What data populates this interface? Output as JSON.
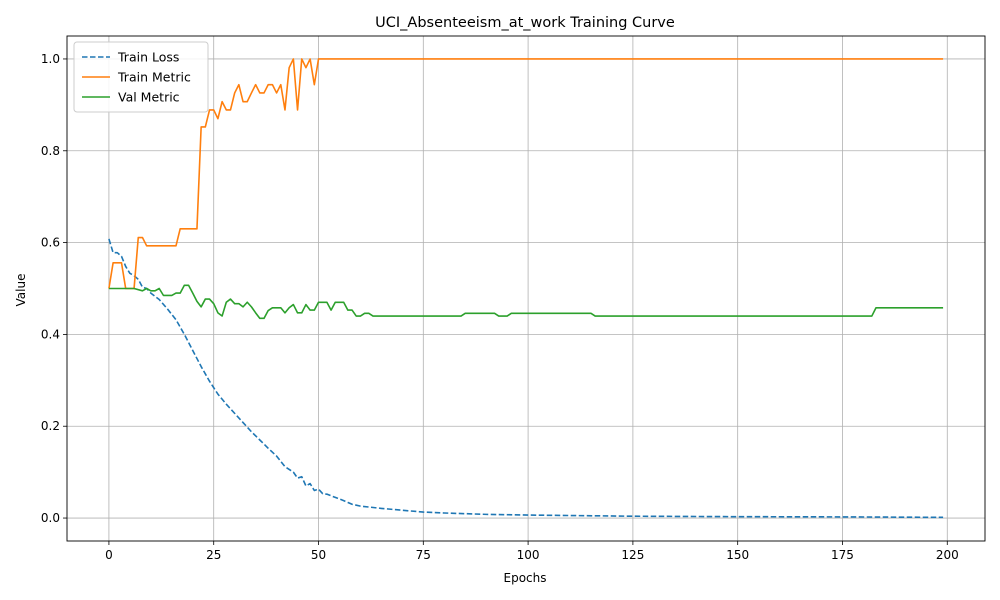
{
  "chart_data": {
    "type": "line",
    "title": "UCI_Absenteeism_at_work Training Curve",
    "xlabel": "Epochs",
    "ylabel": "Value",
    "xlim": [
      -10,
      209
    ],
    "ylim": [
      -0.05,
      1.05
    ],
    "xticks": [
      0,
      25,
      50,
      75,
      100,
      125,
      150,
      175,
      200
    ],
    "yticks": [
      0.0,
      0.2,
      0.4,
      0.6,
      0.8,
      1.0
    ],
    "grid": true,
    "legend_position": "upper-left",
    "series": [
      {
        "name": "Train Loss",
        "color": "#1f77b4",
        "style": "dashed",
        "points": [
          [
            0,
            0.608
          ],
          [
            1,
            0.578
          ],
          [
            2,
            0.578
          ],
          [
            3,
            0.57
          ],
          [
            4,
            0.548
          ],
          [
            5,
            0.533
          ],
          [
            6,
            0.528
          ],
          [
            7,
            0.52
          ],
          [
            8,
            0.503
          ],
          [
            9,
            0.5
          ],
          [
            10,
            0.49
          ],
          [
            12,
            0.476
          ],
          [
            14,
            0.455
          ],
          [
            16,
            0.432
          ],
          [
            18,
            0.4
          ],
          [
            20,
            0.365
          ],
          [
            22,
            0.33
          ],
          [
            24,
            0.298
          ],
          [
            26,
            0.27
          ],
          [
            28,
            0.248
          ],
          [
            30,
            0.228
          ],
          [
            32,
            0.208
          ],
          [
            34,
            0.188
          ],
          [
            36,
            0.17
          ],
          [
            38,
            0.152
          ],
          [
            40,
            0.135
          ],
          [
            42,
            0.112
          ],
          [
            44,
            0.1
          ],
          [
            45,
            0.087
          ],
          [
            46,
            0.09
          ],
          [
            47,
            0.07
          ],
          [
            48,
            0.075
          ],
          [
            49,
            0.06
          ],
          [
            50,
            0.063
          ],
          [
            51,
            0.053
          ],
          [
            52,
            0.052
          ],
          [
            54,
            0.045
          ],
          [
            56,
            0.038
          ],
          [
            58,
            0.03
          ],
          [
            60,
            0.026
          ],
          [
            65,
            0.021
          ],
          [
            70,
            0.017
          ],
          [
            75,
            0.013
          ],
          [
            80,
            0.011
          ],
          [
            90,
            0.008
          ],
          [
            100,
            0.0065
          ],
          [
            125,
            0.004
          ],
          [
            150,
            0.003
          ],
          [
            175,
            0.0025
          ],
          [
            199,
            0.0015
          ]
        ]
      },
      {
        "name": "Train Metric",
        "color": "#ff7f0e",
        "style": "solid",
        "points": [
          [
            0,
            0.5
          ],
          [
            1,
            0.556
          ],
          [
            2,
            0.556
          ],
          [
            3,
            0.556
          ],
          [
            4,
            0.5
          ],
          [
            5,
            0.5
          ],
          [
            6,
            0.5
          ],
          [
            7,
            0.611
          ],
          [
            8,
            0.611
          ],
          [
            9,
            0.593
          ],
          [
            10,
            0.593
          ],
          [
            12,
            0.593
          ],
          [
            14,
            0.593
          ],
          [
            16,
            0.593
          ],
          [
            17,
            0.63
          ],
          [
            18,
            0.63
          ],
          [
            20,
            0.63
          ],
          [
            21,
            0.63
          ],
          [
            22,
            0.852
          ],
          [
            23,
            0.852
          ],
          [
            24,
            0.889
          ],
          [
            25,
            0.889
          ],
          [
            26,
            0.87
          ],
          [
            27,
            0.907
          ],
          [
            28,
            0.889
          ],
          [
            29,
            0.889
          ],
          [
            30,
            0.926
          ],
          [
            31,
            0.944
          ],
          [
            32,
            0.907
          ],
          [
            33,
            0.907
          ],
          [
            34,
            0.926
          ],
          [
            35,
            0.944
          ],
          [
            36,
            0.926
          ],
          [
            37,
            0.926
          ],
          [
            38,
            0.944
          ],
          [
            39,
            0.944
          ],
          [
            40,
            0.926
          ],
          [
            41,
            0.944
          ],
          [
            42,
            0.889
          ],
          [
            43,
            0.981
          ],
          [
            44,
            1.0
          ],
          [
            45,
            0.889
          ],
          [
            46,
            1.0
          ],
          [
            47,
            0.981
          ],
          [
            48,
            1.0
          ],
          [
            49,
            0.944
          ],
          [
            50,
            1.0
          ],
          [
            60,
            1.0
          ],
          [
            80,
            1.0
          ],
          [
            100,
            1.0
          ],
          [
            125,
            1.0
          ],
          [
            150,
            1.0
          ],
          [
            175,
            1.0
          ],
          [
            199,
            1.0
          ]
        ]
      },
      {
        "name": "Val Metric",
        "color": "#2ca02c",
        "style": "solid",
        "points": [
          [
            0,
            0.5
          ],
          [
            2,
            0.5
          ],
          [
            4,
            0.5
          ],
          [
            6,
            0.5
          ],
          [
            8,
            0.495
          ],
          [
            9,
            0.5
          ],
          [
            10,
            0.495
          ],
          [
            11,
            0.495
          ],
          [
            12,
            0.5
          ],
          [
            13,
            0.485
          ],
          [
            14,
            0.485
          ],
          [
            15,
            0.485
          ],
          [
            16,
            0.49
          ],
          [
            17,
            0.49
          ],
          [
            18,
            0.507
          ],
          [
            19,
            0.507
          ],
          [
            20,
            0.49
          ],
          [
            21,
            0.472
          ],
          [
            22,
            0.46
          ],
          [
            23,
            0.477
          ],
          [
            24,
            0.477
          ],
          [
            25,
            0.467
          ],
          [
            26,
            0.447
          ],
          [
            27,
            0.44
          ],
          [
            28,
            0.47
          ],
          [
            29,
            0.477
          ],
          [
            30,
            0.467
          ],
          [
            31,
            0.467
          ],
          [
            32,
            0.46
          ],
          [
            33,
            0.47
          ],
          [
            34,
            0.46
          ],
          [
            35,
            0.447
          ],
          [
            36,
            0.435
          ],
          [
            37,
            0.435
          ],
          [
            38,
            0.452
          ],
          [
            39,
            0.458
          ],
          [
            40,
            0.458
          ],
          [
            41,
            0.458
          ],
          [
            42,
            0.447
          ],
          [
            43,
            0.458
          ],
          [
            44,
            0.465
          ],
          [
            45,
            0.447
          ],
          [
            46,
            0.447
          ],
          [
            47,
            0.465
          ],
          [
            48,
            0.453
          ],
          [
            49,
            0.453
          ],
          [
            50,
            0.47
          ],
          [
            51,
            0.47
          ],
          [
            52,
            0.47
          ],
          [
            53,
            0.453
          ],
          [
            54,
            0.47
          ],
          [
            55,
            0.47
          ],
          [
            56,
            0.47
          ],
          [
            57,
            0.453
          ],
          [
            58,
            0.453
          ],
          [
            59,
            0.44
          ],
          [
            60,
            0.44
          ],
          [
            61,
            0.446
          ],
          [
            62,
            0.446
          ],
          [
            63,
            0.44
          ],
          [
            65,
            0.44
          ],
          [
            70,
            0.44
          ],
          [
            75,
            0.44
          ],
          [
            80,
            0.44
          ],
          [
            84,
            0.44
          ],
          [
            85,
            0.446
          ],
          [
            90,
            0.446
          ],
          [
            92,
            0.446
          ],
          [
            93,
            0.44
          ],
          [
            95,
            0.44
          ],
          [
            96,
            0.446
          ],
          [
            100,
            0.446
          ],
          [
            110,
            0.446
          ],
          [
            115,
            0.446
          ],
          [
            116,
            0.44
          ],
          [
            120,
            0.44
          ],
          [
            150,
            0.44
          ],
          [
            175,
            0.44
          ],
          [
            182,
            0.44
          ],
          [
            183,
            0.458
          ],
          [
            185,
            0.458
          ],
          [
            199,
            0.458
          ]
        ]
      }
    ]
  }
}
